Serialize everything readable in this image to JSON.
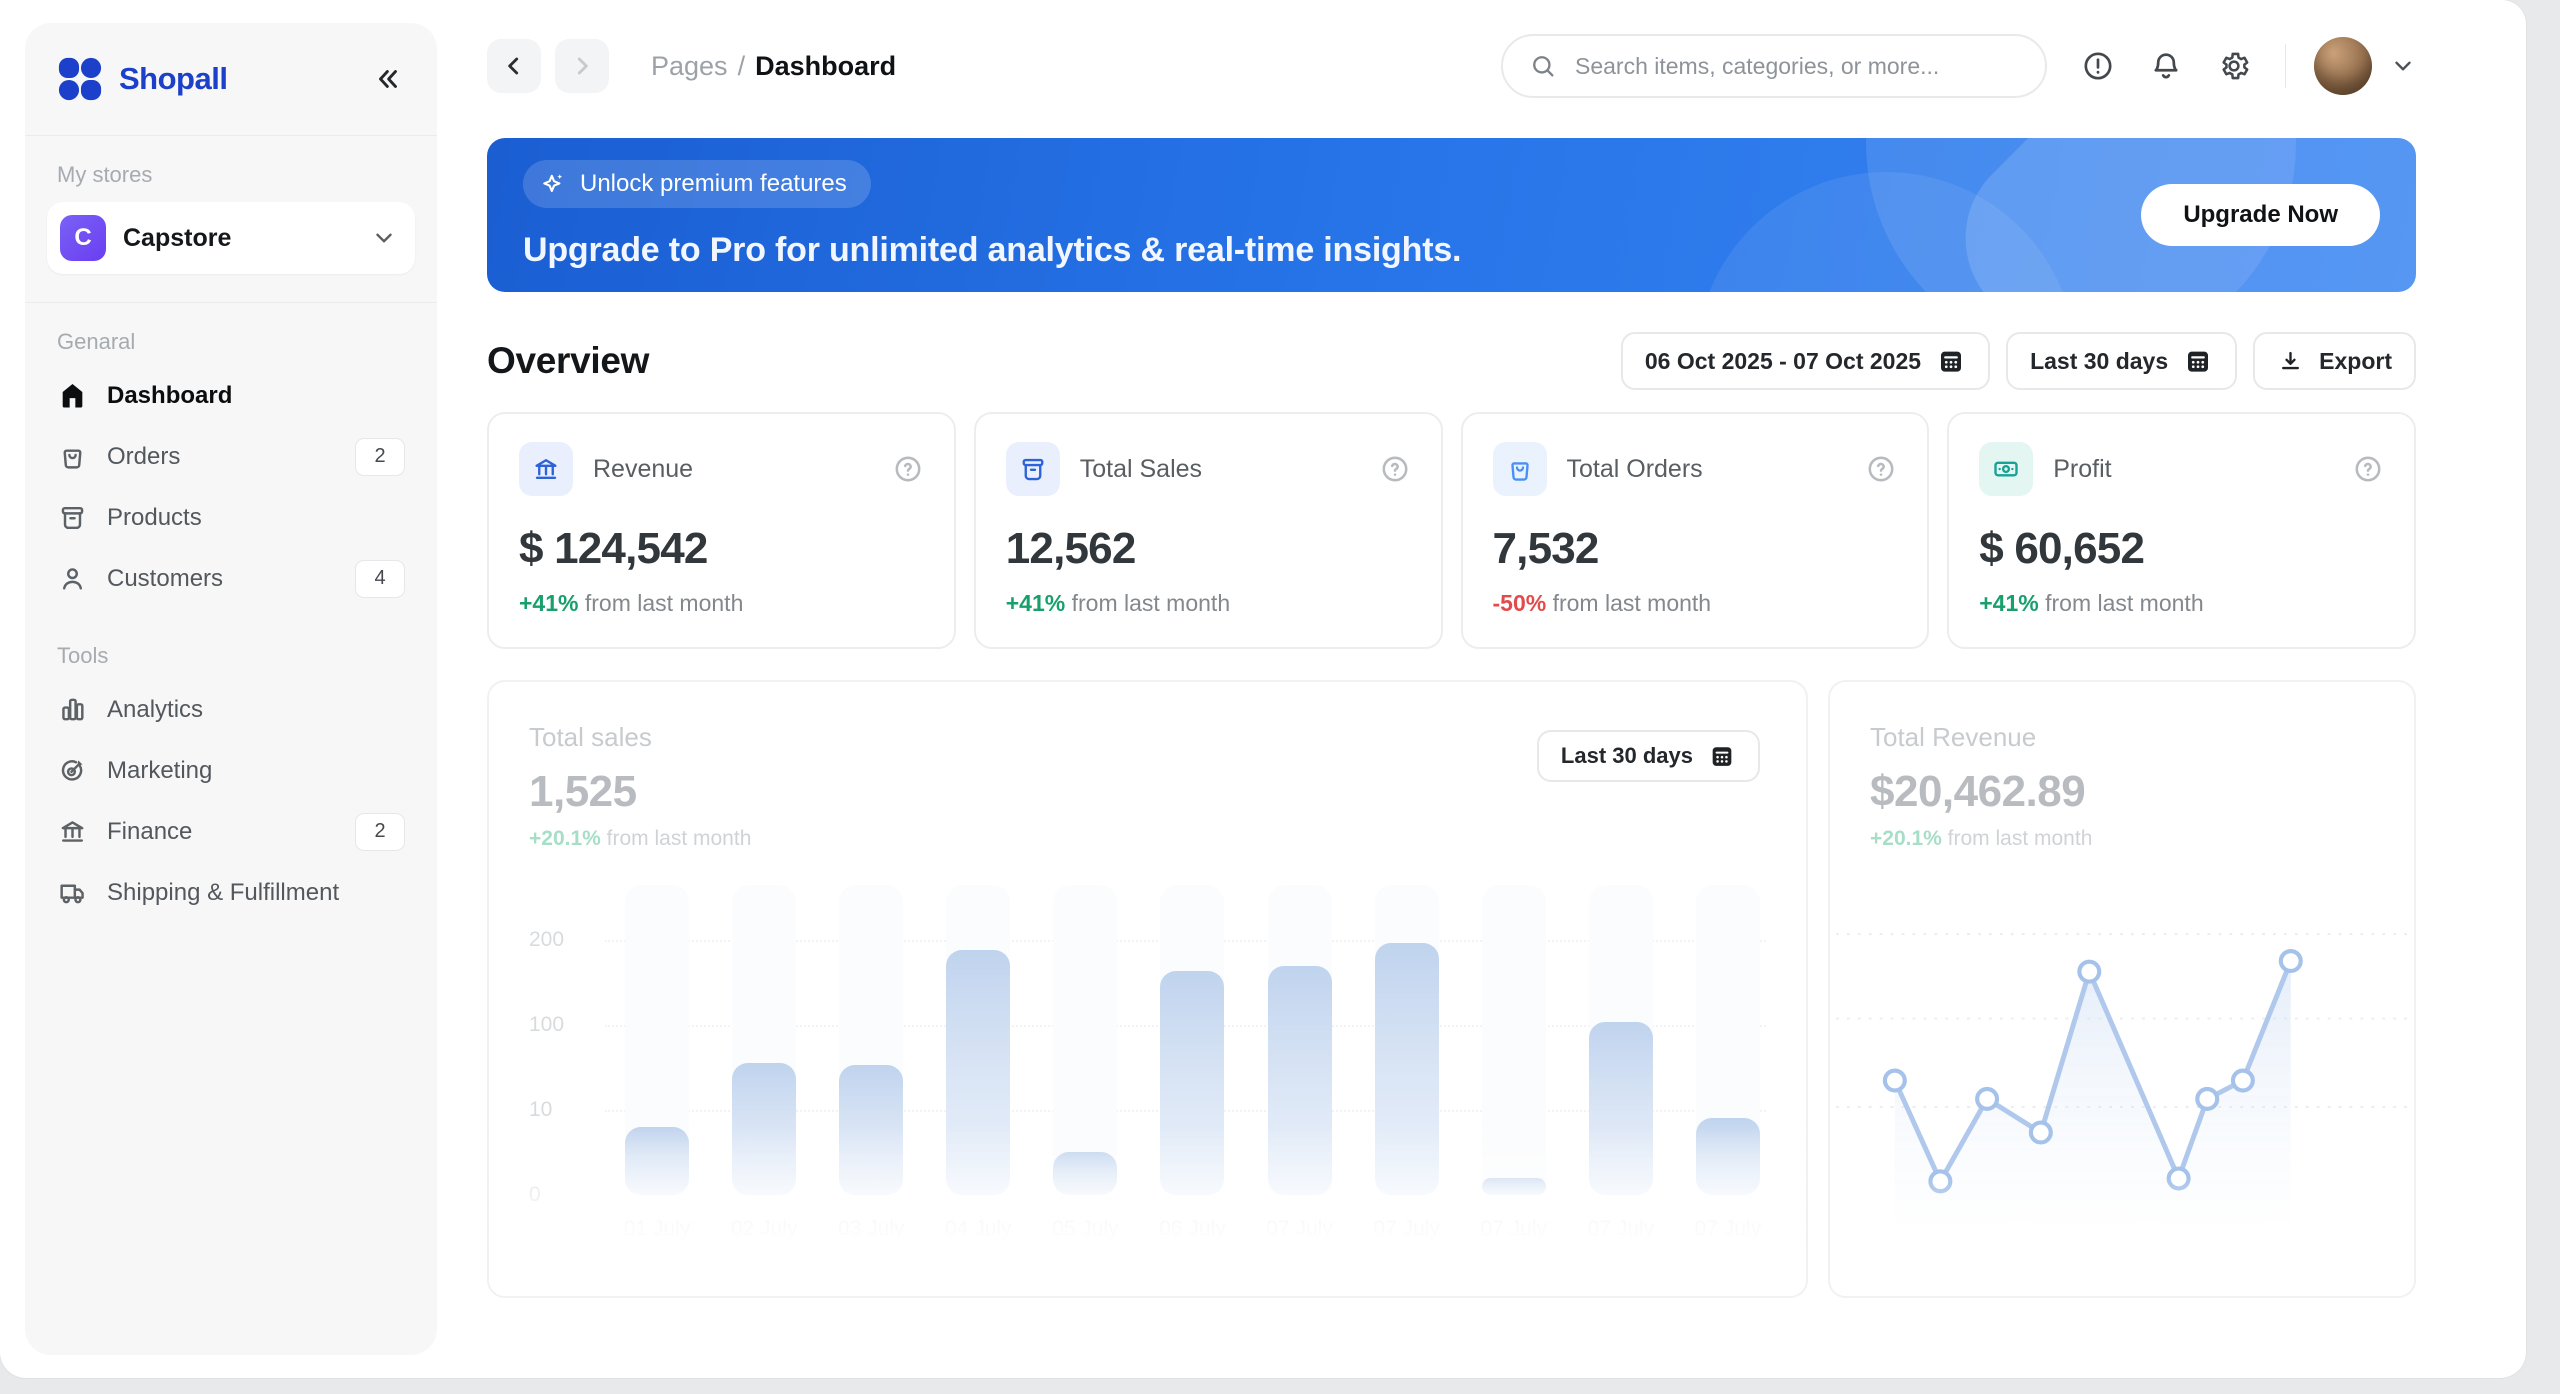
{
  "app_title": "Shopall",
  "colors": {
    "brand_blue": "#1c40c9",
    "banner_gradient": [
      "#1a5ed2",
      "#3b86f2"
    ],
    "positive_green": "#17a06b",
    "negative_red": "#e24b4b",
    "bar_gradient_top": "#8db0e0",
    "bar_gradient_bottom": "#dde8f8",
    "line_stroke": "#9cbbe7",
    "sidebar_bg": "#f7f7f8"
  },
  "sidebar": {
    "logo_text": "Shopall",
    "my_stores_label": "My stores",
    "store": {
      "initial": "C",
      "name": "Capstore"
    },
    "sections": [
      {
        "label": "Genaral",
        "items": [
          {
            "label": "Dashboard",
            "icon": "home-icon",
            "active": true
          },
          {
            "label": "Orders",
            "icon": "orders-icon",
            "badge": "2"
          },
          {
            "label": "Products",
            "icon": "products-icon"
          },
          {
            "label": "Customers",
            "icon": "customers-icon",
            "badge": "4"
          }
        ]
      },
      {
        "label": "Tools",
        "items": [
          {
            "label": "Analytics",
            "icon": "analytics-icon"
          },
          {
            "label": "Marketing",
            "icon": "marketing-icon"
          },
          {
            "label": "Finance",
            "icon": "finance-icon",
            "badge": "2"
          },
          {
            "label": "Shipping & Fulfillment",
            "icon": "shipping-icon"
          }
        ]
      }
    ]
  },
  "header": {
    "breadcrumb_section": "Pages",
    "breadcrumb_sep": "/",
    "breadcrumb_page": "Dashboard",
    "search_placeholder": "Search items, categories, or more..."
  },
  "banner": {
    "chip": "Unlock premium features",
    "title": "Upgrade to Pro for unlimited analytics & real-time insights.",
    "cta": "Upgrade Now"
  },
  "overview": {
    "title": "Overview",
    "date_range": "06 Oct 2025 - 07 Oct 2025",
    "period": "Last 30 days",
    "export_label": "Export"
  },
  "stats": [
    {
      "label": "Revenue",
      "value": "$ 124,542",
      "delta": "+41%",
      "delta_dir": "up",
      "suffix": "from last month",
      "icon": "bank-icon",
      "tile_bg": "#e9effc",
      "icon_color": "#2d62d9"
    },
    {
      "label": "Total Sales",
      "value": "12,562",
      "delta": "+41%",
      "delta_dir": "up",
      "suffix": "from last month",
      "icon": "sales-box-icon",
      "tile_bg": "#e9effc",
      "icon_color": "#2d62d9"
    },
    {
      "label": "Total Orders",
      "value": "7,532",
      "delta": "-50%",
      "delta_dir": "down",
      "suffix": "from last month",
      "icon": "orders-bag-icon",
      "tile_bg": "#e9f2fd",
      "icon_color": "#4a90f4"
    },
    {
      "label": "Profit",
      "value": "$ 60,652",
      "delta": "+41%",
      "delta_dir": "up",
      "suffix": "from last month",
      "icon": "profit-icon",
      "tile_bg": "#e4f6f2",
      "icon_color": "#16a394"
    }
  ],
  "chart_data": [
    {
      "type": "bar",
      "title": "Total sales",
      "value": "1,525",
      "delta": "+20.1%",
      "suffix": "from last month",
      "period": "Last 30 days",
      "categories": [
        "01 July",
        "02 July",
        "03 July",
        "04 July",
        "05 July",
        "06 July",
        "07 July",
        "07 July",
        "07 July",
        "07 July",
        "07 July"
      ],
      "values": [
        8,
        60,
        58,
        188,
        5,
        164,
        170,
        197,
        2,
        103,
        9
      ],
      "yticks": [
        200,
        100,
        10,
        0
      ],
      "ylim": [
        0,
        200
      ],
      "grid": "dotted horizontal, y-axis non-linear (0,10,100,200 equally spaced)",
      "legend": "none"
    },
    {
      "type": "line",
      "title": "Total Revenue",
      "value": "$20,462.89",
      "delta": "+20.1%",
      "suffix": "from last month",
      "points_pct": [
        {
          "x": 11.1,
          "y": 55.5
        },
        {
          "x": 18.9,
          "y": 27.0
        },
        {
          "x": 26.9,
          "y": 50.3
        },
        {
          "x": 36.1,
          "y": 40.8
        },
        {
          "x": 44.4,
          "y": 86.3
        },
        {
          "x": 59.7,
          "y": 27.8
        },
        {
          "x": 64.6,
          "y": 50.3
        },
        {
          "x": 70.7,
          "y": 55.5
        },
        {
          "x": 78.9,
          "y": 89.3
        }
      ],
      "points_note": "x = percent across plot, y = percent height above baseline; no axis labels visible",
      "grid": "dotted horizontal",
      "legend": "none"
    }
  ]
}
